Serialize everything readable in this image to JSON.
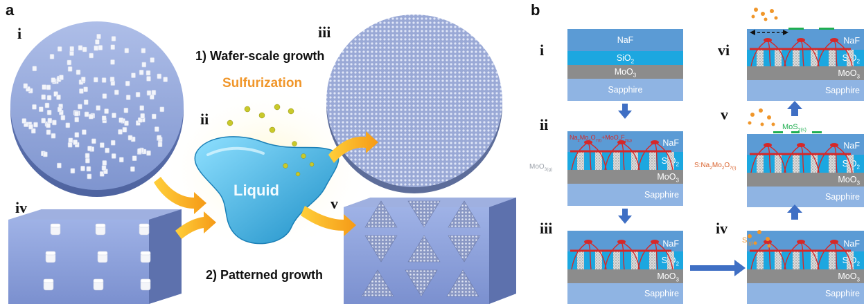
{
  "panel_a": {
    "letter": "a",
    "label_i": "i",
    "label_ii": "ii",
    "label_iii": "iii",
    "label_iv": "iv",
    "label_v": "v",
    "wafer_title": "1) Wafer-scale growth",
    "patterned_title": "2) Patterned growth",
    "sulfurization": "Sulfurization",
    "liquid": "Liquid"
  },
  "panel_b": {
    "letter": "b",
    "label_i": "i",
    "label_ii": "ii",
    "label_iii": "iii",
    "label_iv": "iv",
    "label_v": "v",
    "label_vi": "vi",
    "layer_naf": "NaF",
    "layer_sio2": "SiO",
    "layer_sio2_sub": "2",
    "layer_moo3": "MoO",
    "layer_moo3_sub": "3",
    "layer_sapphire": "Sapphire",
    "moo3_gas": "MoO",
    "moo3_gas_sub": "3(g)",
    "liquid_product_a": "Na",
    "liquid_product_b": "2",
    "liquid_product_c": "Mo",
    "liquid_product_d": "2",
    "liquid_product_e": "O",
    "liquid_product_f": "7(l)",
    "liquid_product_g": "+MoO",
    "liquid_product_h": "2",
    "liquid_product_i": "F",
    "liquid_product_j": "2(g)",
    "s_na_a": "S:Na",
    "s_na_b": "2",
    "s_na_c": "Mo",
    "s_na_d": "2",
    "s_na_e": "O",
    "s_na_f": "7(l)",
    "mos2_a": "MoS",
    "mos2_b": "2(s)",
    "s_gas": "S",
    "s_gas_sub": "(g)"
  },
  "colors": {
    "naf": "#5b9bd5",
    "sio2": "#1ca7e0",
    "moo3": "#8c8c8c",
    "sapphire": "#8fb4e3",
    "arrow_blue": "#3f6fc4",
    "sulfur_orange": "#f0962a",
    "product_red": "#d62828",
    "mos2_green": "#1fae50"
  }
}
